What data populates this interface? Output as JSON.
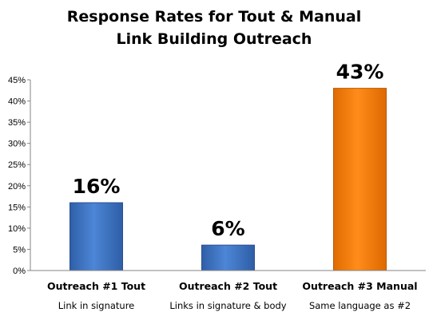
{
  "chart_data": {
    "type": "bar",
    "title_lines": [
      "Response Rates for Tout & Manual",
      "Link Building Outreach"
    ],
    "categories": [
      "Outreach #1 Tout",
      "Outreach #2 Tout",
      "Outreach #3 Manual"
    ],
    "subtitles": [
      "Link in signature",
      "Links in signature & body",
      "Same language as #2"
    ],
    "values": [
      16,
      6,
      43
    ],
    "data_labels": [
      "16%",
      "6%",
      "43%"
    ],
    "bar_colors": [
      "#3f73c3",
      "#3f73c3",
      "#f07d10"
    ],
    "ylim": [
      0,
      45
    ],
    "yticks": [
      0,
      5,
      10,
      15,
      20,
      25,
      30,
      35,
      40,
      45
    ],
    "ytick_labels": [
      "0%",
      "5%",
      "10%",
      "15%",
      "20%",
      "25%",
      "30%",
      "35%",
      "40%",
      "45%"
    ],
    "grid": false,
    "legend": "none"
  }
}
